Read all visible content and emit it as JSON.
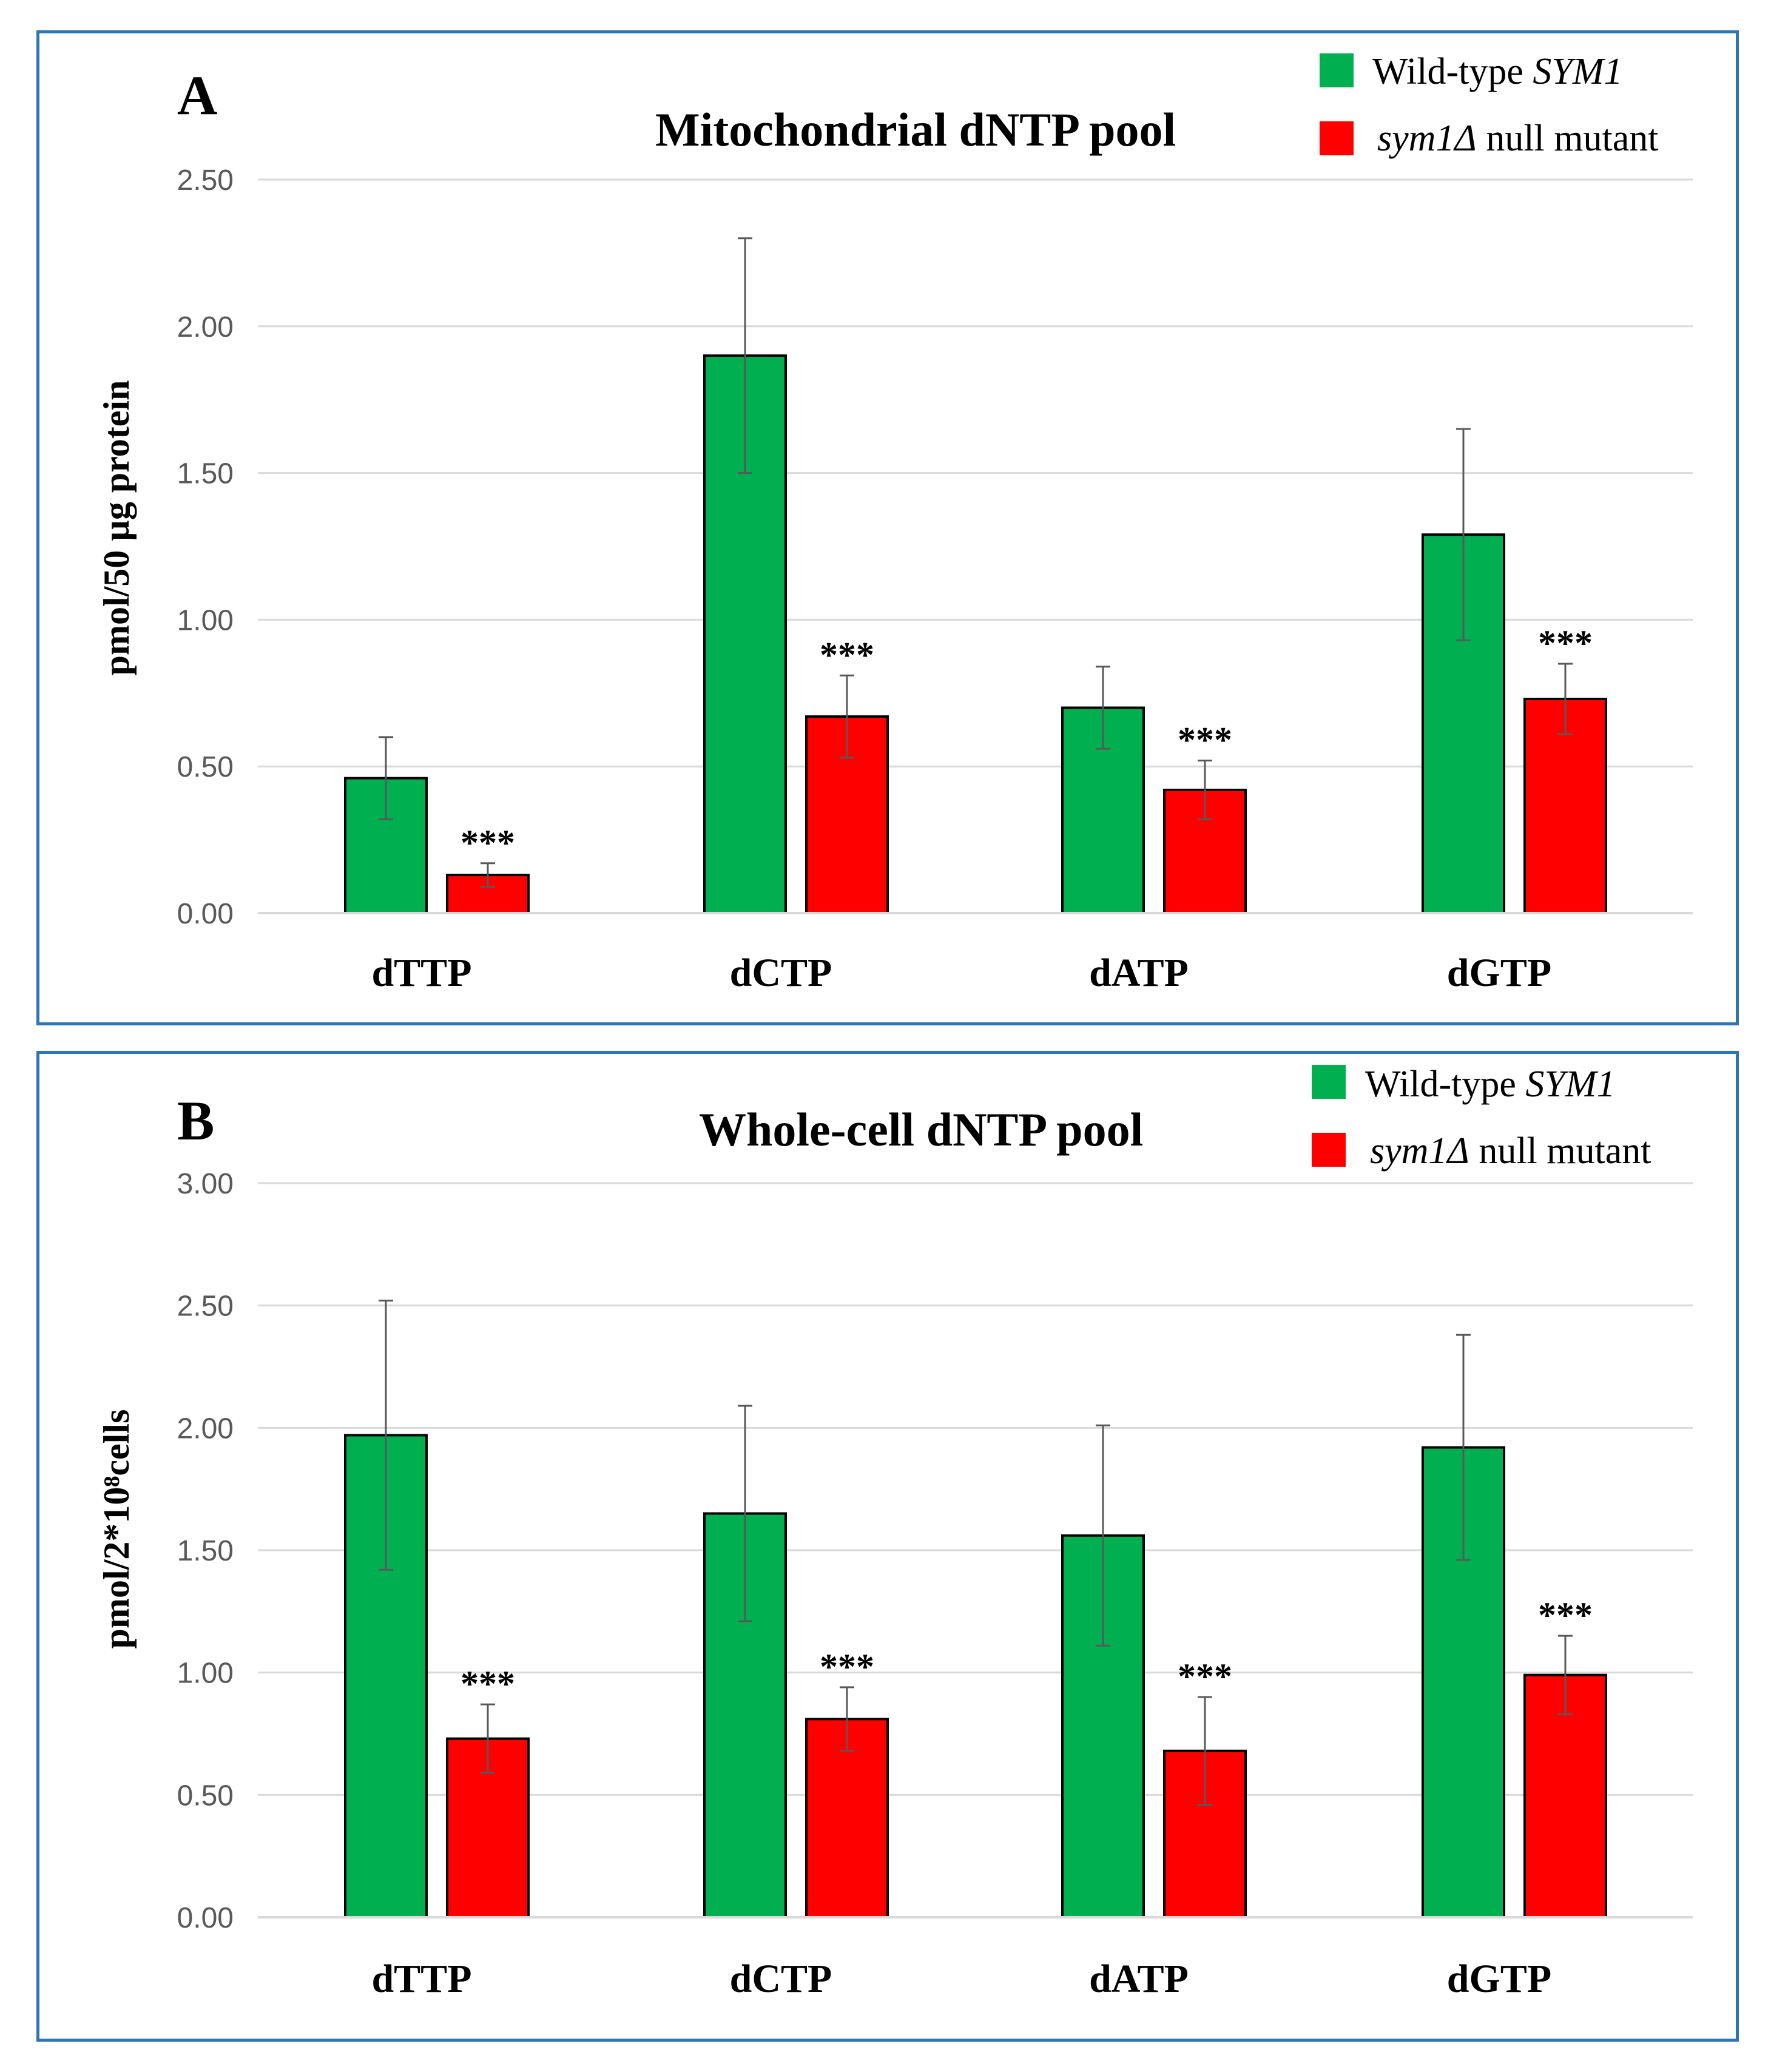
{
  "colors": {
    "wild_type": "#00b050",
    "mutant": "#ff0000",
    "frame": "#2e75b6"
  },
  "chart_data": [
    {
      "type": "bar",
      "panel_letter": "A",
      "title": "Mitochondrial dNTP pool",
      "ylabel": "pmol/50 µg protein",
      "xlabel": "",
      "ylim": [
        0,
        2.5
      ],
      "yticks": [
        "0.00",
        "0.50",
        "1.00",
        "1.50",
        "2.00",
        "2.50"
      ],
      "ytick_values": [
        0,
        0.5,
        1.0,
        1.5,
        2.0,
        2.5
      ],
      "categories": [
        "dTTP",
        "dCTP",
        "dATP",
        "dGTP"
      ],
      "legend": {
        "wt_prefix": "Wild-type ",
        "wt_italic": "SYM1",
        "mut_italic": "sym1Δ",
        "mut_suffix": " null mutant"
      },
      "significance": [
        "***",
        "***",
        "***",
        "***"
      ],
      "series": [
        {
          "name": "Wild-type SYM1",
          "values": [
            0.46,
            1.9,
            0.7,
            1.29
          ],
          "errors": [
            0.14,
            0.4,
            0.14,
            0.36
          ]
        },
        {
          "name": "sym1Δ null mutant",
          "values": [
            0.13,
            0.67,
            0.42,
            0.73
          ],
          "errors": [
            0.04,
            0.14,
            0.1,
            0.12
          ]
        }
      ]
    },
    {
      "type": "bar",
      "panel_letter": "B",
      "title": "Whole-cell dNTP pool",
      "ylabel": "pmol/2*10⁸cells",
      "xlabel": "",
      "ylim": [
        0,
        3.0
      ],
      "yticks": [
        "0.00",
        "0.50",
        "1.00",
        "1.50",
        "2.00",
        "2.50",
        "3.00"
      ],
      "ytick_values": [
        0,
        0.5,
        1.0,
        1.5,
        2.0,
        2.5,
        3.0
      ],
      "categories": [
        "dTTP",
        "dCTP",
        "dATP",
        "dGTP"
      ],
      "legend": {
        "wt_prefix": "Wild-type ",
        "wt_italic": "SYM1",
        "mut_italic": "sym1Δ",
        "mut_suffix": " null mutant"
      },
      "significance": [
        "***",
        "***",
        "***",
        "***"
      ],
      "series": [
        {
          "name": "Wild-type SYM1",
          "values": [
            1.97,
            1.65,
            1.56,
            1.92
          ],
          "errors": [
            0.55,
            0.44,
            0.45,
            0.46
          ]
        },
        {
          "name": "sym1Δ null mutant",
          "values": [
            0.73,
            0.81,
            0.68,
            0.99
          ],
          "errors": [
            0.14,
            0.13,
            0.22,
            0.16
          ]
        }
      ]
    }
  ]
}
